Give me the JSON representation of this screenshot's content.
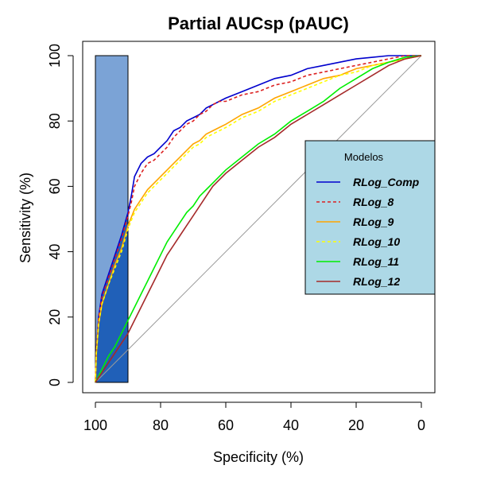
{
  "chart_data": {
    "type": "line",
    "title": "Partial AUCsp (pAUC)",
    "xlabel": "Specificity (%)",
    "ylabel": "Sensitivity (%)",
    "xlim": [
      100,
      0
    ],
    "ylim": [
      0,
      100
    ],
    "x_reversed": true,
    "xticks": [
      100,
      80,
      60,
      40,
      20,
      0
    ],
    "yticks": [
      0,
      20,
      40,
      60,
      80,
      100
    ],
    "grid": false,
    "reference_line": true,
    "partial_region": {
      "specificity_range": [
        100,
        90
      ],
      "full_color": "#7ba3d6",
      "corrected_color": "#2060b8"
    },
    "legend": {
      "title": "Modelos",
      "placement": "center-right",
      "background": "#add8e6"
    },
    "series": [
      {
        "name": "RLog_Comp",
        "color": "#0000cd",
        "dash": "solid",
        "points": [
          [
            100,
            0
          ],
          [
            99.7,
            10
          ],
          [
            99,
            20
          ],
          [
            98,
            27
          ],
          [
            96,
            33
          ],
          [
            94,
            39
          ],
          [
            92,
            45
          ],
          [
            90,
            52
          ],
          [
            89,
            57
          ],
          [
            88,
            63
          ],
          [
            86,
            67
          ],
          [
            84,
            69
          ],
          [
            82,
            70
          ],
          [
            80,
            72
          ],
          [
            78,
            74
          ],
          [
            76,
            77
          ],
          [
            74,
            78
          ],
          [
            72,
            80
          ],
          [
            70,
            81
          ],
          [
            68,
            82
          ],
          [
            66,
            84
          ],
          [
            64,
            85
          ],
          [
            62,
            86
          ],
          [
            60,
            87
          ],
          [
            55,
            89
          ],
          [
            50,
            91
          ],
          [
            45,
            93
          ],
          [
            40,
            94
          ],
          [
            35,
            96
          ],
          [
            30,
            97
          ],
          [
            25,
            98
          ],
          [
            20,
            99
          ],
          [
            15,
            99.5
          ],
          [
            10,
            100
          ],
          [
            5,
            100
          ],
          [
            0,
            100
          ]
        ]
      },
      {
        "name": "RLog_8",
        "color": "#dc2020",
        "dash": "4,3",
        "points": [
          [
            100,
            0
          ],
          [
            99.7,
            10
          ],
          [
            99,
            20
          ],
          [
            98,
            26
          ],
          [
            96,
            32
          ],
          [
            94,
            38
          ],
          [
            92,
            44
          ],
          [
            90,
            51
          ],
          [
            89,
            55
          ],
          [
            88,
            60
          ],
          [
            86,
            64
          ],
          [
            84,
            67
          ],
          [
            82,
            68
          ],
          [
            80,
            70
          ],
          [
            78,
            72
          ],
          [
            76,
            75
          ],
          [
            74,
            77
          ],
          [
            72,
            79
          ],
          [
            70,
            80
          ],
          [
            68,
            82
          ],
          [
            66,
            83
          ],
          [
            64,
            85
          ],
          [
            62,
            86
          ],
          [
            60,
            86
          ],
          [
            55,
            88
          ],
          [
            50,
            89
          ],
          [
            45,
            91
          ],
          [
            40,
            92
          ],
          [
            35,
            94
          ],
          [
            30,
            95
          ],
          [
            25,
            96
          ],
          [
            20,
            97
          ],
          [
            15,
            98
          ],
          [
            10,
            99
          ],
          [
            5,
            100
          ],
          [
            0,
            100
          ]
        ]
      },
      {
        "name": "RLog_9",
        "color": "#ffa500",
        "dash": "solid",
        "points": [
          [
            100,
            0
          ],
          [
            99.7,
            9
          ],
          [
            99,
            18
          ],
          [
            98,
            24
          ],
          [
            96,
            30
          ],
          [
            94,
            36
          ],
          [
            92,
            41
          ],
          [
            90,
            48
          ],
          [
            88,
            53
          ],
          [
            86,
            56
          ],
          [
            84,
            59
          ],
          [
            82,
            61
          ],
          [
            80,
            63
          ],
          [
            78,
            65
          ],
          [
            76,
            67
          ],
          [
            74,
            69
          ],
          [
            72,
            71
          ],
          [
            70,
            73
          ],
          [
            68,
            74
          ],
          [
            66,
            76
          ],
          [
            64,
            77
          ],
          [
            62,
            78
          ],
          [
            60,
            79
          ],
          [
            55,
            82
          ],
          [
            50,
            84
          ],
          [
            45,
            87
          ],
          [
            40,
            89
          ],
          [
            35,
            91
          ],
          [
            30,
            93
          ],
          [
            25,
            94
          ],
          [
            20,
            96
          ],
          [
            15,
            97
          ],
          [
            10,
            98
          ],
          [
            5,
            99
          ],
          [
            0,
            100
          ]
        ]
      },
      {
        "name": "RLog_10",
        "color": "#ffff00",
        "dash": "4,3",
        "points": [
          [
            100,
            0
          ],
          [
            99.7,
            9
          ],
          [
            99,
            18
          ],
          [
            98,
            24
          ],
          [
            96,
            30
          ],
          [
            94,
            35
          ],
          [
            92,
            40
          ],
          [
            90,
            47
          ],
          [
            88,
            52
          ],
          [
            86,
            55
          ],
          [
            84,
            58
          ],
          [
            82,
            60
          ],
          [
            80,
            62
          ],
          [
            78,
            64
          ],
          [
            76,
            66
          ],
          [
            74,
            68
          ],
          [
            72,
            70
          ],
          [
            70,
            72
          ],
          [
            68,
            73
          ],
          [
            66,
            75
          ],
          [
            64,
            76
          ],
          [
            62,
            77
          ],
          [
            60,
            78
          ],
          [
            55,
            81
          ],
          [
            50,
            83
          ],
          [
            45,
            86
          ],
          [
            40,
            88
          ],
          [
            35,
            90
          ],
          [
            30,
            92
          ],
          [
            25,
            94
          ],
          [
            20,
            95
          ],
          [
            15,
            97
          ],
          [
            10,
            98
          ],
          [
            5,
            99
          ],
          [
            0,
            100
          ]
        ]
      },
      {
        "name": "RLog_11",
        "color": "#00ee00",
        "dash": "solid",
        "points": [
          [
            100,
            0
          ],
          [
            98,
            4
          ],
          [
            96,
            8
          ],
          [
            94,
            11
          ],
          [
            92,
            15
          ],
          [
            90,
            19
          ],
          [
            88,
            23
          ],
          [
            86,
            27
          ],
          [
            84,
            31
          ],
          [
            82,
            35
          ],
          [
            80,
            39
          ],
          [
            78,
            43
          ],
          [
            76,
            46
          ],
          [
            74,
            49
          ],
          [
            72,
            52
          ],
          [
            70,
            54
          ],
          [
            68,
            57
          ],
          [
            66,
            59
          ],
          [
            64,
            61
          ],
          [
            62,
            63
          ],
          [
            60,
            65
          ],
          [
            55,
            69
          ],
          [
            50,
            73
          ],
          [
            45,
            76
          ],
          [
            40,
            80
          ],
          [
            35,
            83
          ],
          [
            30,
            86
          ],
          [
            25,
            90
          ],
          [
            20,
            93
          ],
          [
            15,
            96
          ],
          [
            10,
            98
          ],
          [
            5,
            99.5
          ],
          [
            0,
            100
          ]
        ]
      },
      {
        "name": "RLog_12",
        "color": "#a52a2a",
        "dash": "solid",
        "points": [
          [
            100,
            0
          ],
          [
            98,
            3
          ],
          [
            96,
            6
          ],
          [
            94,
            9
          ],
          [
            92,
            12
          ],
          [
            90,
            15
          ],
          [
            88,
            19
          ],
          [
            86,
            23
          ],
          [
            84,
            27
          ],
          [
            82,
            31
          ],
          [
            80,
            35
          ],
          [
            78,
            39
          ],
          [
            76,
            42
          ],
          [
            74,
            45
          ],
          [
            72,
            48
          ],
          [
            70,
            51
          ],
          [
            68,
            54
          ],
          [
            66,
            57
          ],
          [
            64,
            60
          ],
          [
            62,
            62
          ],
          [
            60,
            64
          ],
          [
            55,
            68
          ],
          [
            50,
            72
          ],
          [
            45,
            75
          ],
          [
            40,
            79
          ],
          [
            35,
            82
          ],
          [
            30,
            85
          ],
          [
            25,
            88
          ],
          [
            20,
            91
          ],
          [
            15,
            94
          ],
          [
            10,
            97
          ],
          [
            5,
            99
          ],
          [
            0,
            100
          ]
        ]
      }
    ]
  }
}
